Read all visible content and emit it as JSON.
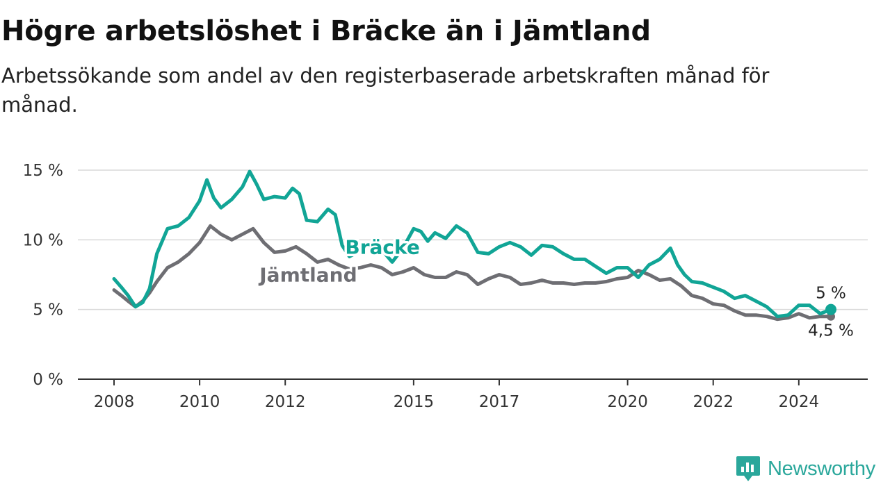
{
  "header": {
    "title": "Högre arbetslöshet i Bräcke än i Jämtland",
    "subtitle": "Arbetssökande som andel av den registerbaserade arbetskraften månad för månad."
  },
  "brand": {
    "name": "Newsworthy",
    "icon": "newsworthy-logo-icon",
    "color": "#2aa79b"
  },
  "chart_data": {
    "type": "line",
    "title": "Högre arbetslöshet i Bräcke än i Jämtland",
    "subtitle": "Arbetssökande som andel av den registerbaserade arbetskraften månad för månad.",
    "xlabel": "",
    "ylabel": "",
    "x_range": [
      2008,
      2024.75
    ],
    "ylim": [
      0,
      15
    ],
    "y_ticks": [
      0,
      5,
      10,
      15
    ],
    "y_tick_labels": [
      "0 %",
      "5 %",
      "10 %",
      "15 %"
    ],
    "x_ticks": [
      2008,
      2010,
      2012,
      2015,
      2017,
      2020,
      2022,
      2024
    ],
    "x_tick_labels": [
      "2008",
      "2010",
      "2012",
      "2015",
      "2017",
      "2020",
      "2022",
      "2024"
    ],
    "grid": true,
    "series": [
      {
        "name": "Jämtland",
        "color": "#6e6e73",
        "label_at": [
          2011.4,
          7.0
        ],
        "end_label": "4,5 %",
        "points": [
          [
            2008.0,
            6.4
          ],
          [
            2008.17,
            6.0
          ],
          [
            2008.33,
            5.6
          ],
          [
            2008.5,
            5.2
          ],
          [
            2008.67,
            5.6
          ],
          [
            2008.83,
            6.2
          ],
          [
            2009.0,
            7.0
          ],
          [
            2009.25,
            8.0
          ],
          [
            2009.5,
            8.4
          ],
          [
            2009.75,
            9.0
          ],
          [
            2010.0,
            9.8
          ],
          [
            2010.25,
            11.0
          ],
          [
            2010.5,
            10.4
          ],
          [
            2010.75,
            10.0
          ],
          [
            2011.0,
            10.4
          ],
          [
            2011.25,
            10.8
          ],
          [
            2011.5,
            9.8
          ],
          [
            2011.75,
            9.1
          ],
          [
            2012.0,
            9.2
          ],
          [
            2012.25,
            9.5
          ],
          [
            2012.5,
            9.0
          ],
          [
            2012.75,
            8.4
          ],
          [
            2013.0,
            8.6
          ],
          [
            2013.25,
            8.2
          ],
          [
            2013.5,
            7.9
          ],
          [
            2013.75,
            8.0
          ],
          [
            2014.0,
            8.2
          ],
          [
            2014.25,
            8.0
          ],
          [
            2014.5,
            7.5
          ],
          [
            2014.75,
            7.7
          ],
          [
            2015.0,
            8.0
          ],
          [
            2015.25,
            7.5
          ],
          [
            2015.5,
            7.3
          ],
          [
            2015.75,
            7.3
          ],
          [
            2016.0,
            7.7
          ],
          [
            2016.25,
            7.5
          ],
          [
            2016.5,
            6.8
          ],
          [
            2016.75,
            7.2
          ],
          [
            2017.0,
            7.5
          ],
          [
            2017.25,
            7.3
          ],
          [
            2017.5,
            6.8
          ],
          [
            2017.75,
            6.9
          ],
          [
            2018.0,
            7.1
          ],
          [
            2018.25,
            6.9
          ],
          [
            2018.5,
            6.9
          ],
          [
            2018.75,
            6.8
          ],
          [
            2019.0,
            6.9
          ],
          [
            2019.25,
            6.9
          ],
          [
            2019.5,
            7.0
          ],
          [
            2019.75,
            7.2
          ],
          [
            2020.0,
            7.3
          ],
          [
            2020.25,
            7.8
          ],
          [
            2020.5,
            7.5
          ],
          [
            2020.75,
            7.1
          ],
          [
            2021.0,
            7.2
          ],
          [
            2021.25,
            6.7
          ],
          [
            2021.5,
            6.0
          ],
          [
            2021.75,
            5.8
          ],
          [
            2022.0,
            5.4
          ],
          [
            2022.25,
            5.3
          ],
          [
            2022.5,
            4.9
          ],
          [
            2022.75,
            4.6
          ],
          [
            2023.0,
            4.6
          ],
          [
            2023.25,
            4.5
          ],
          [
            2023.5,
            4.3
          ],
          [
            2023.75,
            4.4
          ],
          [
            2024.0,
            4.7
          ],
          [
            2024.25,
            4.4
          ],
          [
            2024.5,
            4.5
          ],
          [
            2024.75,
            4.5
          ]
        ]
      },
      {
        "name": "Bräcke",
        "color": "#11a596",
        "label_at": [
          2013.4,
          9.0
        ],
        "end_label": "5 %",
        "points": [
          [
            2008.0,
            7.2
          ],
          [
            2008.17,
            6.6
          ],
          [
            2008.33,
            6.0
          ],
          [
            2008.5,
            5.2
          ],
          [
            2008.67,
            5.5
          ],
          [
            2008.83,
            6.5
          ],
          [
            2009.0,
            9.0
          ],
          [
            2009.25,
            10.8
          ],
          [
            2009.5,
            11.0
          ],
          [
            2009.75,
            11.6
          ],
          [
            2010.0,
            12.8
          ],
          [
            2010.17,
            14.3
          ],
          [
            2010.33,
            13.0
          ],
          [
            2010.5,
            12.3
          ],
          [
            2010.75,
            12.9
          ],
          [
            2011.0,
            13.8
          ],
          [
            2011.17,
            14.9
          ],
          [
            2011.33,
            14.0
          ],
          [
            2011.5,
            12.9
          ],
          [
            2011.75,
            13.1
          ],
          [
            2012.0,
            13.0
          ],
          [
            2012.17,
            13.7
          ],
          [
            2012.33,
            13.3
          ],
          [
            2012.5,
            11.4
          ],
          [
            2012.75,
            11.3
          ],
          [
            2013.0,
            12.2
          ],
          [
            2013.17,
            11.8
          ],
          [
            2013.33,
            9.6
          ],
          [
            2013.5,
            8.8
          ],
          [
            2013.75,
            9.2
          ],
          [
            2014.0,
            9.7
          ],
          [
            2014.25,
            9.3
          ],
          [
            2014.5,
            8.4
          ],
          [
            2014.75,
            9.4
          ],
          [
            2015.0,
            10.8
          ],
          [
            2015.17,
            10.6
          ],
          [
            2015.33,
            9.9
          ],
          [
            2015.5,
            10.5
          ],
          [
            2015.75,
            10.1
          ],
          [
            2016.0,
            11.0
          ],
          [
            2016.25,
            10.5
          ],
          [
            2016.5,
            9.1
          ],
          [
            2016.75,
            9.0
          ],
          [
            2017.0,
            9.5
          ],
          [
            2017.25,
            9.8
          ],
          [
            2017.5,
            9.5
          ],
          [
            2017.75,
            8.9
          ],
          [
            2018.0,
            9.6
          ],
          [
            2018.25,
            9.5
          ],
          [
            2018.5,
            9.0
          ],
          [
            2018.75,
            8.6
          ],
          [
            2019.0,
            8.6
          ],
          [
            2019.25,
            8.1
          ],
          [
            2019.5,
            7.6
          ],
          [
            2019.75,
            8.0
          ],
          [
            2020.0,
            8.0
          ],
          [
            2020.25,
            7.3
          ],
          [
            2020.5,
            8.2
          ],
          [
            2020.75,
            8.6
          ],
          [
            2021.0,
            9.4
          ],
          [
            2021.17,
            8.2
          ],
          [
            2021.33,
            7.5
          ],
          [
            2021.5,
            7.0
          ],
          [
            2021.75,
            6.9
          ],
          [
            2022.0,
            6.6
          ],
          [
            2022.25,
            6.3
          ],
          [
            2022.5,
            5.8
          ],
          [
            2022.75,
            6.0
          ],
          [
            2023.0,
            5.6
          ],
          [
            2023.25,
            5.2
          ],
          [
            2023.5,
            4.5
          ],
          [
            2023.75,
            4.6
          ],
          [
            2024.0,
            5.3
          ],
          [
            2024.25,
            5.3
          ],
          [
            2024.5,
            4.7
          ],
          [
            2024.75,
            5.0
          ]
        ]
      }
    ]
  }
}
